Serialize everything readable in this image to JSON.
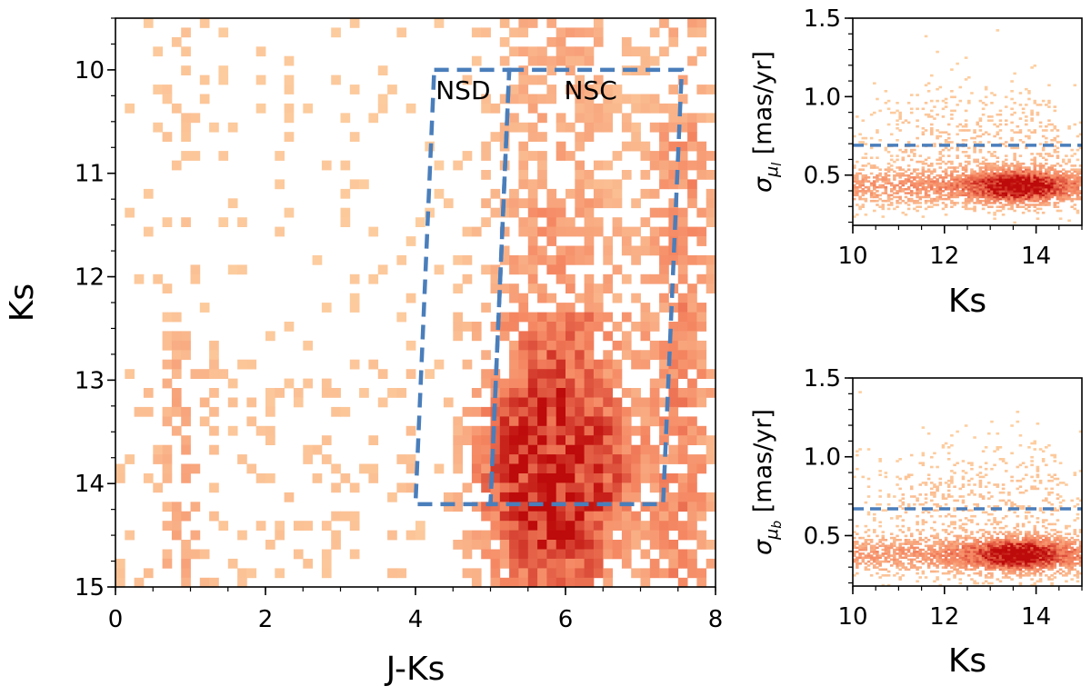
{
  "colors": {
    "density_low": "#fdd0a2",
    "density_mid": "#f4835f",
    "density_high": "#bd0a0a",
    "box": "#4a7ebb",
    "axis": "#000000"
  },
  "chart_data": [
    {
      "type": "heatmap",
      "name": "cmd",
      "xlabel": "J-Ks",
      "ylabel": "Ks",
      "xlim": [
        0,
        8
      ],
      "ylim": [
        15,
        9.5
      ],
      "y_inverted": true,
      "xticks": [
        "0",
        "2",
        "4",
        "6",
        "8"
      ],
      "yticks": [
        "10",
        "11",
        "12",
        "13",
        "14",
        "15"
      ],
      "regions": [
        {
          "label": "NSD",
          "corners": [
            [
              4.25,
              10.0
            ],
            [
              5.25,
              10.0
            ],
            [
              5.0,
              14.2
            ],
            [
              4.0,
              14.2
            ]
          ]
        },
        {
          "label": "NSC",
          "corners": [
            [
              5.25,
              10.0
            ],
            [
              7.55,
              10.0
            ],
            [
              7.3,
              14.2
            ],
            [
              5.0,
              14.2
            ]
          ]
        }
      ],
      "density_peak": {
        "x": 5.8,
        "y": 13.85
      }
    },
    {
      "type": "heatmap",
      "name": "sigma-mu-l",
      "xlabel": "Ks",
      "ylabel_parts": {
        "sym": "σ",
        "sub": "μ",
        "subsub": "l",
        "unit": " [mas/yr]"
      },
      "xlim": [
        10,
        15
      ],
      "ylim": [
        0.18,
        1.5
      ],
      "xticks": [
        "10",
        "12",
        "14"
      ],
      "yticks": [
        "0.5",
        "1.0",
        "1.5"
      ],
      "threshold": 0.69,
      "density_peak": {
        "x": 13.6,
        "y": 0.43
      }
    },
    {
      "type": "heatmap",
      "name": "sigma-mu-b",
      "xlabel": "Ks",
      "ylabel_parts": {
        "sym": "σ",
        "sub": "μ",
        "subsub": "b",
        "unit": " [mas/yr]"
      },
      "xlim": [
        10,
        15
      ],
      "ylim": [
        0.18,
        1.5
      ],
      "xticks": [
        "10",
        "12",
        "14"
      ],
      "yticks": [
        "0.5",
        "1.0",
        "1.5"
      ],
      "threshold": 0.67,
      "density_peak": {
        "x": 13.6,
        "y": 0.38
      }
    }
  ]
}
